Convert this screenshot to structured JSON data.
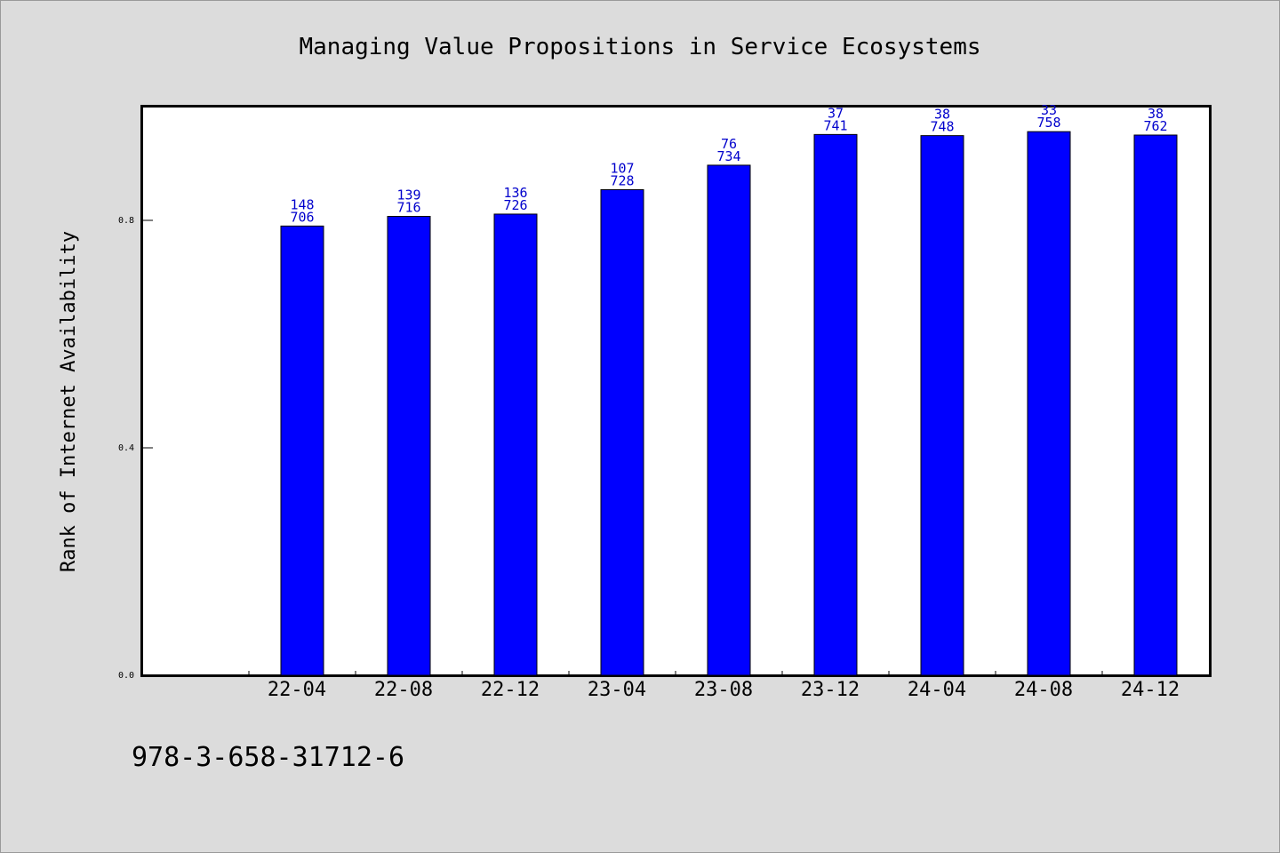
{
  "chart_data": {
    "type": "bar",
    "title": "Managing Value Propositions in Service Ecosystems",
    "xlabel": "",
    "ylabel": "Rank of Internet Availability",
    "ylim": [
      0,
      1.0
    ],
    "yticks": [
      "0.0",
      "0.4",
      "0.8"
    ],
    "ytick_values": [
      0.0,
      0.4,
      0.8
    ],
    "categories": [
      "22-04",
      "22-08",
      "22-12",
      "23-04",
      "23-08",
      "23-12",
      "24-04",
      "24-08",
      "24-12"
    ],
    "values": [
      0.79,
      0.807,
      0.811,
      0.854,
      0.897,
      0.951,
      0.949,
      0.956,
      0.95
    ],
    "labels_top": [
      "148",
      "139",
      "136",
      "107",
      "76",
      "37",
      "38",
      "33",
      "38"
    ],
    "labels_bottom": [
      "706",
      "716",
      "726",
      "728",
      "734",
      "741",
      "748",
      "758",
      "762"
    ],
    "bar_color": "#0000ff",
    "label_color": "#0000cc",
    "grid": false,
    "legend": "none"
  },
  "footer": {
    "isbn": "978-3-658-31712-6"
  }
}
